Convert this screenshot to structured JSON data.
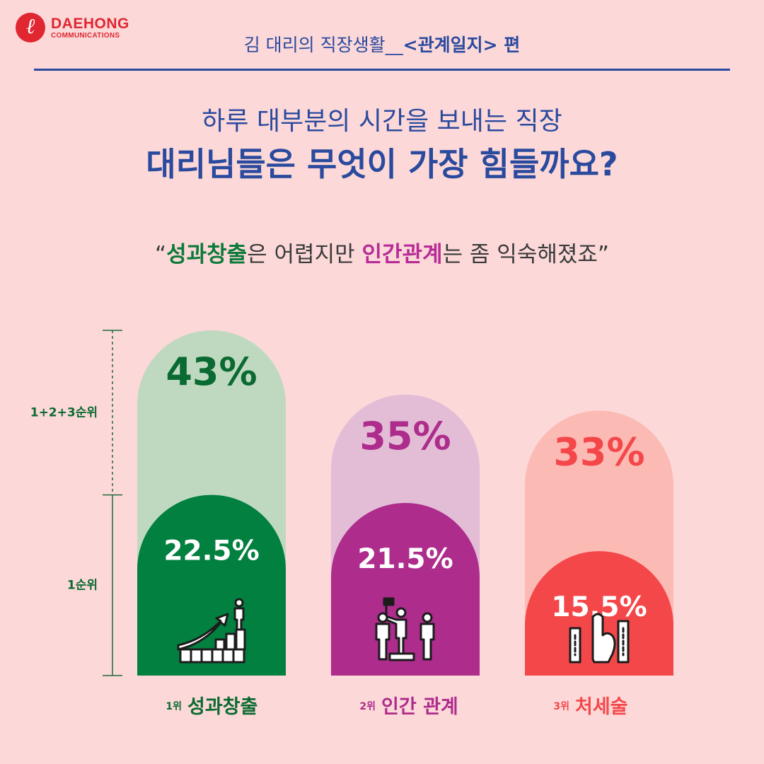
{
  "brand": {
    "name": "DAEHONG",
    "sub": "COMMUNICATIONS"
  },
  "header": {
    "prefix": "김 대리의 직장생활__",
    "highlight": "<관계일지>",
    "suffix": " 편"
  },
  "title": {
    "line1": "하루 대부분의 시간을 보내는 직장",
    "line2": "대리님들은 무엇이 가장 힘들까요?"
  },
  "quote": {
    "open": "“",
    "part1": "성과창출",
    "part2": "은 어렵지만 ",
    "part3": "인간관계",
    "part4": "는 좀 익숙해졌죠",
    "close": "”"
  },
  "chart_data": {
    "type": "bar",
    "categories": [
      "성과창출",
      "인간 관계",
      "처세술"
    ],
    "rank_labels": [
      "1위",
      "2위",
      "3위"
    ],
    "series": [
      {
        "name": "1+2+3순위",
        "values": [
          43,
          35,
          33
        ],
        "labels": [
          "43%",
          "35%",
          "33%"
        ]
      },
      {
        "name": "1순위",
        "values": [
          22.5,
          21.5,
          15.5
        ],
        "labels": [
          "22.5%",
          "21.5%",
          "15.5%"
        ]
      }
    ],
    "bracket_labels": [
      "1+2+3순위",
      "1순위"
    ],
    "colors": {
      "total": [
        "#bfd9c1",
        "#e3bcd6",
        "#fcbab4"
      ],
      "first": [
        "#02803f",
        "#ad2c8c",
        "#f4474a"
      ],
      "total_text": [
        "#0b6a31",
        "#ad2c8c",
        "#f4474a"
      ],
      "category_text": [
        "#0b6a31",
        "#ad2c8c",
        "#f4474a"
      ]
    },
    "icons": [
      "growth-chart-icon",
      "people-flag-icon",
      "hand-icon"
    ]
  }
}
